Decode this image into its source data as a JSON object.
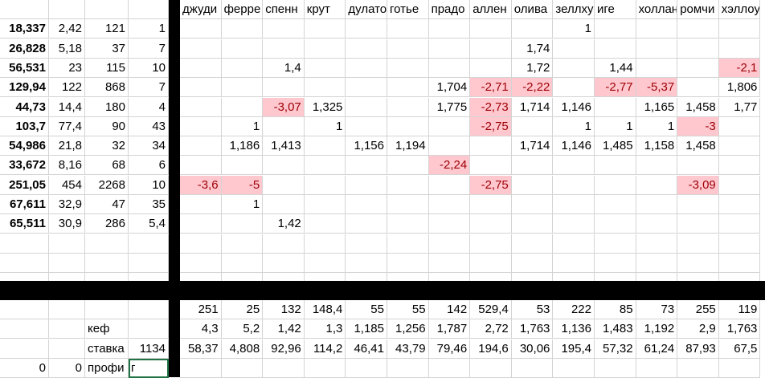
{
  "header_names": [
    "джуди",
    "ферре",
    "спенн",
    "крут",
    "дулато",
    "готье",
    "прадо",
    "аллен",
    "олива",
    "зеллху",
    "иге",
    "холлан",
    "ромчи",
    "хэллоу"
  ],
  "rows": [
    {
      "a": "18,337",
      "b": "2,42",
      "c": "121",
      "d": "1",
      "vals": [
        "",
        "",
        "",
        "",
        "",
        "",
        "",
        "",
        "",
        "1",
        "",
        "",
        "",
        ""
      ]
    },
    {
      "a": "26,828",
      "b": "5,18",
      "c": "37",
      "d": "7",
      "vals": [
        "",
        "",
        "",
        "",
        "",
        "",
        "",
        "",
        "1,74",
        "",
        "",
        "",
        "",
        ""
      ]
    },
    {
      "a": "56,531",
      "b": "23",
      "c": "115",
      "d": "10",
      "vals": [
        "",
        "",
        "1,4",
        "",
        "",
        "",
        "",
        "",
        "1,72",
        "",
        "1,44",
        "",
        "",
        "-2,1"
      ]
    },
    {
      "a": "129,94",
      "b": "122",
      "c": "868",
      "d": "7",
      "vals": [
        "",
        "",
        "",
        "",
        "",
        "",
        "1,704",
        "-2,71",
        "-2,22",
        "",
        "-2,77",
        "-5,37",
        "",
        "1,806"
      ]
    },
    {
      "a": "44,73",
      "b": "14,4",
      "c": "180",
      "d": "4",
      "vals": [
        "",
        "",
        "-3,07",
        "1,325",
        "",
        "",
        "1,775",
        "-2,73",
        "1,714",
        "1,146",
        "",
        "1,165",
        "1,458",
        "1,77"
      ]
    },
    {
      "a": "103,7",
      "b": "77,4",
      "c": "90",
      "d": "43",
      "vals": [
        "",
        "1",
        "",
        "1",
        "",
        "",
        "",
        "-2,75",
        "",
        "1",
        "1",
        "1",
        "-3",
        ""
      ]
    },
    {
      "a": "54,986",
      "b": "21,8",
      "c": "32",
      "d": "34",
      "vals": [
        "",
        "1,186",
        "1,413",
        "",
        "1,156",
        "1,194",
        "",
        "",
        "1,714",
        "1,146",
        "1,485",
        "1,158",
        "1,458",
        ""
      ]
    },
    {
      "a": "33,672",
      "b": "8,16",
      "c": "68",
      "d": "6",
      "vals": [
        "",
        "",
        "",
        "",
        "",
        "",
        "-2,24",
        "",
        "",
        "",
        "",
        "",
        "",
        ""
      ]
    },
    {
      "a": "251,05",
      "b": "454",
      "c": "2268",
      "d": "10",
      "vals": [
        "-3,6",
        "-5",
        "",
        "",
        "",
        "",
        "",
        "-2,75",
        "",
        "",
        "",
        "",
        "-3,09",
        ""
      ]
    },
    {
      "a": "67,611",
      "b": "32,9",
      "c": "47",
      "d": "35",
      "vals": [
        "",
        "1",
        "",
        "",
        "",
        "",
        "",
        "",
        "",
        "",
        "",
        "",
        "",
        ""
      ]
    },
    {
      "a": "65,511",
      "b": "30,9",
      "c": "286",
      "d": "5,4",
      "vals": [
        "",
        "",
        "1,42",
        "",
        "",
        "",
        "",
        "",
        "",
        "",
        "",
        "",
        "",
        ""
      ]
    }
  ],
  "totals": [
    "251",
    "25",
    "132",
    "148,4",
    "55",
    "55",
    "142",
    "529,4",
    "53",
    "222",
    "85",
    "73",
    "255",
    "119"
  ],
  "kef_label": "кеф",
  "kef": [
    "4,3",
    "5,2",
    "1,42",
    "1,3",
    "1,185",
    "1,256",
    "1,787",
    "2,72",
    "1,763",
    "1,136",
    "1,483",
    "1,192",
    "2,9",
    "1,763"
  ],
  "stavka_label": "ставка",
  "stavka_value": "1134",
  "stavka": [
    "58,37",
    "4,808",
    "92,96",
    "114,2",
    "46,41",
    "43,79",
    "79,46",
    "194,6",
    "30,06",
    "195,4",
    "57,32",
    "61,24",
    "87,93",
    "67,5"
  ],
  "profit_a": "0",
  "profit_b": "0",
  "profit_label": "профи",
  "active_cell_value": "г"
}
